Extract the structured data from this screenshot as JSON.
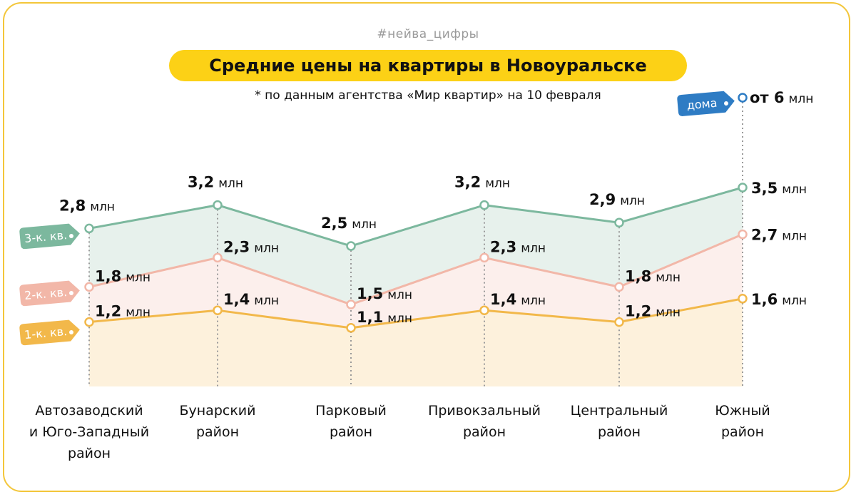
{
  "header": {
    "hashtag": "#нейва_цифры",
    "title": "Средние цены на квартиры в Новоуральске",
    "subtitle": "* по данным агентства «Мир квартир» на 10 февраля"
  },
  "colors": {
    "frame": "#f3c63a",
    "title_bg": "#fcd116",
    "series_3k": "#7cb89e",
    "series_2k": "#f2b7a8",
    "series_1k": "#f2b84a",
    "houses": "#2e7cc4"
  },
  "chart_data": {
    "type": "line",
    "title": "Средние цены на квартиры в Новоуральске",
    "unit": "млн",
    "categories": [
      [
        "Автозаводский",
        "и Юго-Западный",
        "район"
      ],
      [
        "Бунарский",
        "район"
      ],
      [
        "Парковый",
        "район"
      ],
      [
        "Привокзальный",
        "район"
      ],
      [
        "Центральный",
        "район"
      ],
      [
        "Южный",
        "район"
      ]
    ],
    "series": [
      {
        "name": "3-к. кв.",
        "values": [
          2.8,
          3.2,
          2.5,
          3.2,
          2.9,
          3.5
        ],
        "labels": [
          "2,8",
          "3,2",
          "2,5",
          "3,2",
          "2,9",
          "3,5"
        ]
      },
      {
        "name": "2-к. кв.",
        "values": [
          1.8,
          2.3,
          1.5,
          2.3,
          1.8,
          2.7
        ],
        "labels": [
          "1,8",
          "2,3",
          "1,5",
          "2,3",
          "1,8",
          "2,7"
        ]
      },
      {
        "name": "1-к. кв.",
        "values": [
          1.2,
          1.4,
          1.1,
          1.4,
          1.2,
          1.6
        ],
        "labels": [
          "1,2",
          "1,4",
          "1,1",
          "1,4",
          "1,2",
          "1,6"
        ]
      }
    ],
    "houses": {
      "name": "дома",
      "category_index": 5,
      "label_prefix": "от",
      "value": 6,
      "label": "6"
    }
  }
}
